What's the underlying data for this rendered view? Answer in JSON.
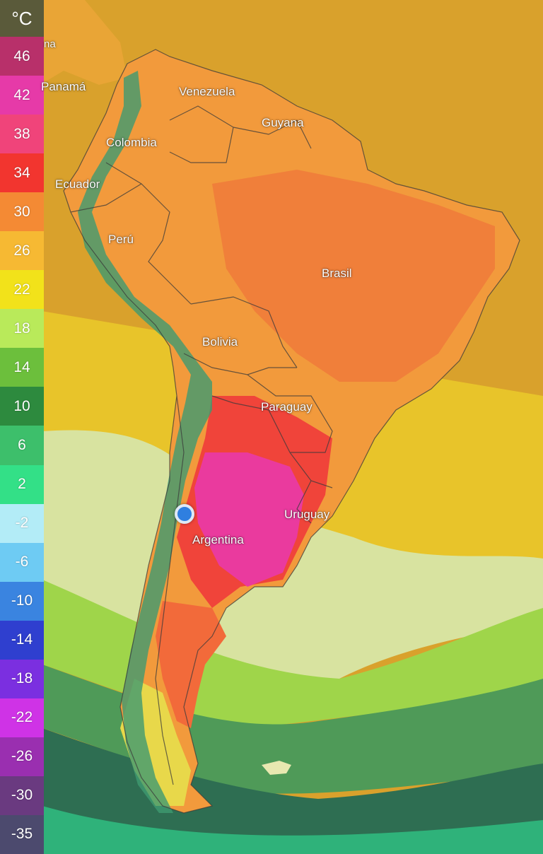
{
  "legend": {
    "unit": "°C",
    "steps": [
      {
        "label": "46",
        "color": "#b8306a"
      },
      {
        "label": "42",
        "color": "#e63aa8"
      },
      {
        "label": "38",
        "color": "#f0447a"
      },
      {
        "label": "34",
        "color": "#f2352f"
      },
      {
        "label": "30",
        "color": "#f48a34"
      },
      {
        "label": "26",
        "color": "#f6b933"
      },
      {
        "label": "22",
        "color": "#f2e21a"
      },
      {
        "label": "18",
        "color": "#b9ea5a"
      },
      {
        "label": "14",
        "color": "#6cbf3c"
      },
      {
        "label": "10",
        "color": "#2d8a3e"
      },
      {
        "label": "6",
        "color": "#3dbf6b"
      },
      {
        "label": "2",
        "color": "#33e087"
      },
      {
        "label": "-2",
        "color": "#b3ecf7"
      },
      {
        "label": "-6",
        "color": "#6ecbf3"
      },
      {
        "label": "-10",
        "color": "#3a84e0"
      },
      {
        "label": "-14",
        "color": "#2f3fcf"
      },
      {
        "label": "-18",
        "color": "#7b2fe0"
      },
      {
        "label": "-22",
        "color": "#cf33e6"
      },
      {
        "label": "-26",
        "color": "#9a2fb0"
      },
      {
        "label": "-30",
        "color": "#6a3a80"
      },
      {
        "label": "-35",
        "color": "#4c4a6e"
      }
    ]
  },
  "labels": {
    "panama": "Panamá",
    "venezuela": "Venezuela",
    "guyana": "Guyana",
    "colombia": "Colombia",
    "ecuador": "Ecuador",
    "peru": "Perú",
    "brasil": "Brasil",
    "bolivia": "Bolivia",
    "paraguay": "Paraguay",
    "uruguay": "Uruguay",
    "argentina": "Argentina",
    "partial_top": "na"
  },
  "map_colors": {
    "ocean_warm": "#d9a12c",
    "ocean_mid": "#e8c42a",
    "ocean_cool": "#b9e07a",
    "ocean_cold": "#4f9a58",
    "ocean_colder": "#2fb27a",
    "land_hot": "#f08a3a",
    "land_very_hot": "#f0443a",
    "land_extreme": "#ea3a9e",
    "andes": "#3f9a70"
  }
}
